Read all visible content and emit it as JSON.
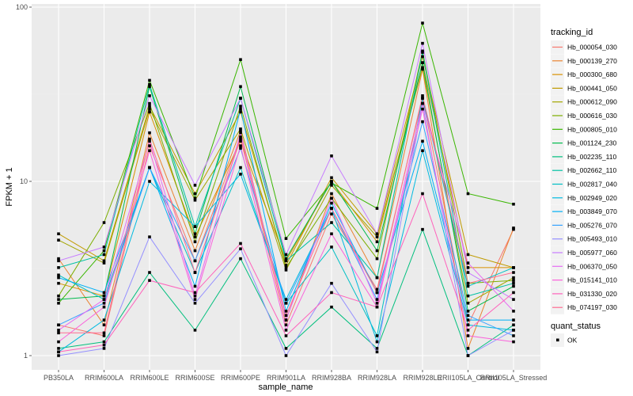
{
  "chart_data": {
    "type": "line",
    "title": "",
    "xlabel": "sample_name",
    "ylabel": "FPKM + 1",
    "y_scale": "log10",
    "ylim": [
      0.9,
      100
    ],
    "y_ticks": [
      {
        "value": 1,
        "label": "1"
      },
      {
        "value": 10,
        "label": "10"
      },
      {
        "value": 100,
        "label": "100"
      }
    ],
    "grid": true,
    "legend_position": "right",
    "categories": [
      "PB350LA",
      "RRIM600LA",
      "RRIM600LE",
      "RRIM600SE",
      "RRIM600PE",
      "RRIM901LA",
      "RRIM928BA",
      "RRIM928LA",
      "RRIM928LE",
      "RRII105LA_Control",
      "RRII105LA_Stressed"
    ],
    "series": [
      {
        "name": "Hb_000054_030",
        "color": "#F8766D",
        "values": [
          1.5,
          1.3,
          16.0,
          3.5,
          18.0,
          1.5,
          6.5,
          2.4,
          30.0,
          1.5,
          5.3
        ]
      },
      {
        "name": "Hb_000139_270",
        "color": "#EA8331",
        "values": [
          3.6,
          1.5,
          19.0,
          4.0,
          19.5,
          1.6,
          8.5,
          2.8,
          44.0,
          1.1,
          5.4
        ]
      },
      {
        "name": "Hb_000300_680",
        "color": "#D89000",
        "values": [
          2.6,
          2.2,
          25.0,
          4.8,
          17.0,
          3.5,
          10.0,
          4.5,
          48.0,
          3.2,
          3.2
        ]
      },
      {
        "name": "Hb_000441_050",
        "color": "#C09B00",
        "values": [
          5.0,
          3.5,
          27.0,
          8.5,
          25.0,
          3.3,
          10.5,
          5.0,
          52.0,
          3.8,
          3.2
        ]
      },
      {
        "name": "Hb_000612_090",
        "color": "#A3A500",
        "values": [
          4.6,
          3.4,
          26.0,
          7.8,
          20.0,
          3.1,
          9.5,
          4.8,
          45.0,
          2.0,
          2.8
        ]
      },
      {
        "name": "Hb_000616_030",
        "color": "#7CAE00",
        "values": [
          2.2,
          5.8,
          28.0,
          4.5,
          27.0,
          3.2,
          8.0,
          3.6,
          56.0,
          2.6,
          2.7
        ]
      },
      {
        "name": "Hb_000805_010",
        "color": "#39B600",
        "values": [
          2.0,
          4.0,
          38.0,
          8.0,
          50.0,
          4.7,
          9.8,
          7.0,
          81.0,
          8.5,
          7.4
        ]
      },
      {
        "name": "Hb_001124_230",
        "color": "#00BB4E",
        "values": [
          2.1,
          2.2,
          35.0,
          5.0,
          35.0,
          3.6,
          10.0,
          4.0,
          48.0,
          1.8,
          2.5
        ]
      },
      {
        "name": "Hb_002235_110",
        "color": "#00BF7D",
        "values": [
          1.1,
          1.2,
          3.0,
          1.4,
          3.6,
          1.1,
          1.9,
          1.1,
          5.3,
          1.0,
          1.5
        ]
      },
      {
        "name": "Hb_002662_110",
        "color": "#00C1A3",
        "values": [
          3.2,
          3.8,
          36.0,
          5.5,
          30.0,
          3.5,
          5.8,
          2.8,
          55.0,
          2.2,
          2.6
        ]
      },
      {
        "name": "Hb_002817_040",
        "color": "#00BFC4",
        "values": [
          2.9,
          2.1,
          12.0,
          3.0,
          12.0,
          2.0,
          4.2,
          1.3,
          30.0,
          2.5,
          3.2
        ]
      },
      {
        "name": "Hb_002949_020",
        "color": "#00BAE0",
        "values": [
          1.05,
          1.6,
          10.0,
          5.5,
          11.0,
          2.1,
          7.0,
          1.2,
          15.0,
          1.5,
          1.4
        ]
      },
      {
        "name": "Hb_003849_070",
        "color": "#00B0F6",
        "values": [
          2.8,
          2.3,
          12.0,
          2.5,
          26.0,
          1.8,
          7.5,
          2.3,
          17.0,
          1.6,
          1.6
        ]
      },
      {
        "name": "Hb_005276_070",
        "color": "#35A2FF",
        "values": [
          1.5,
          2.0,
          12.0,
          3.5,
          15.5,
          2.0,
          7.0,
          2.1,
          22.0,
          1.7,
          1.3
        ]
      },
      {
        "name": "Hb_005493_010",
        "color": "#9590FF",
        "values": [
          1.0,
          1.1,
          4.8,
          2.0,
          4.1,
          1.0,
          2.6,
          1.05,
          28.0,
          1.0,
          1.4
        ]
      },
      {
        "name": "Hb_005977_060",
        "color": "#C77CFF",
        "values": [
          3.5,
          4.2,
          31.0,
          9.5,
          30.0,
          3.8,
          14.0,
          5.0,
          62.0,
          3.0,
          2.1
        ]
      },
      {
        "name": "Hb_006370_050",
        "color": "#E76BF3",
        "values": [
          1.4,
          2.1,
          17.0,
          2.2,
          19.0,
          1.6,
          8.0,
          2.0,
          28.0,
          3.4,
          1.8
        ]
      },
      {
        "name": "Hb_015141_010",
        "color": "#FA62DB",
        "values": [
          1.2,
          1.9,
          15.0,
          2.1,
          16.0,
          1.4,
          5.0,
          1.9,
          26.0,
          1.3,
          1.2
        ]
      },
      {
        "name": "Hb_031330_020",
        "color": "#FF62BC",
        "values": [
          1.05,
          1.15,
          2.7,
          2.3,
          4.4,
          1.3,
          2.3,
          1.9,
          8.5,
          1.4,
          2.3
        ]
      },
      {
        "name": "Hb_074197_030",
        "color": "#FF6C91",
        "values": [
          1.35,
          1.35,
          17.5,
          3.0,
          17.5,
          1.7,
          7.0,
          2.3,
          31.0,
          2.6,
          3.0
        ]
      }
    ],
    "legends": [
      {
        "title": "tracking_id",
        "type": "line"
      },
      {
        "title": "quant_status",
        "type": "point",
        "entries": [
          {
            "label": "OK"
          }
        ]
      }
    ]
  },
  "colors": {
    "panel_bg": "#EBEBEB",
    "grid_major": "#FFFFFF",
    "grid_minor": "#F2F2F2",
    "point": "#000000"
  }
}
